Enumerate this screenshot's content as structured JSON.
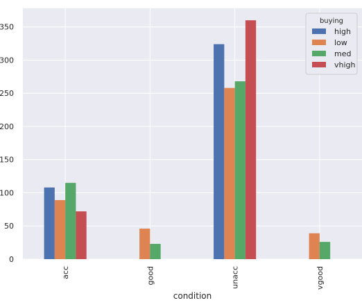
{
  "chart_data": {
    "type": "bar",
    "categories": [
      "acc",
      "good",
      "unacc",
      "vgood"
    ],
    "series": [
      {
        "name": "high",
        "values": [
          108,
          0,
          324,
          0
        ],
        "color": "#4c72b0"
      },
      {
        "name": "low",
        "values": [
          89,
          46,
          258,
          39
        ],
        "color": "#dd8452"
      },
      {
        "name": "med",
        "values": [
          115,
          23,
          268,
          26
        ],
        "color": "#55a868"
      },
      {
        "name": "vhigh",
        "values": [
          72,
          0,
          360,
          0
        ],
        "color": "#c44e52"
      }
    ],
    "title": "",
    "xlabel": "condition",
    "ylabel": "",
    "ylim": [
      0,
      378
    ],
    "yticks": [
      0,
      50,
      100,
      150,
      200,
      250,
      300,
      350
    ],
    "grid": true,
    "legend": {
      "title": "buying",
      "placement": "top-right"
    },
    "background_color": "#eaeaf2",
    "grid_color": "#ffffff"
  }
}
